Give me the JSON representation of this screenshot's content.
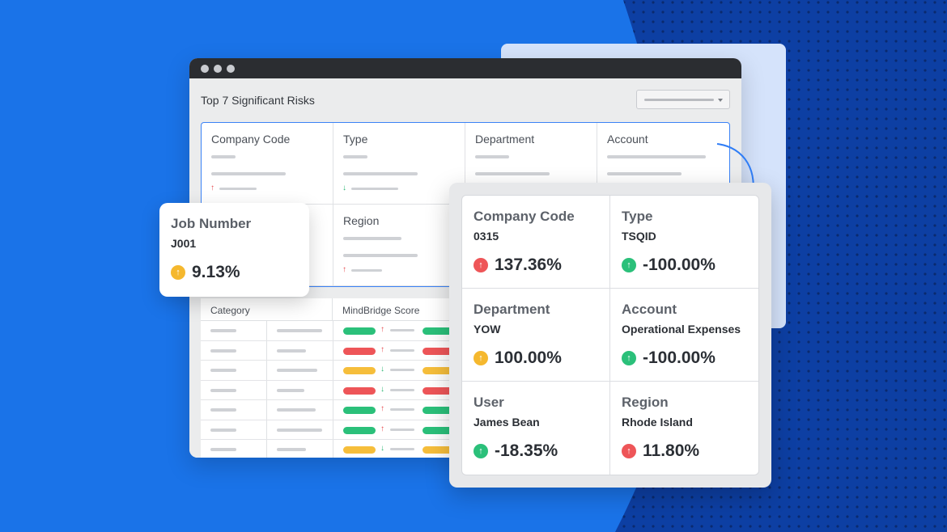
{
  "risk_panel": {
    "title": "Top 7 Significant Risks",
    "cards": [
      {
        "label": "Company Code"
      },
      {
        "label": "Type"
      },
      {
        "label": "Department"
      },
      {
        "label": "Account"
      },
      {
        "label": ""
      },
      {
        "label": "Region"
      }
    ]
  },
  "table": {
    "headers": [
      "Category",
      "MindBridge Score"
    ],
    "row_scores": [
      "green",
      "red",
      "yellow",
      "red",
      "green",
      "green",
      "yellow"
    ]
  },
  "job_card": {
    "label": "Job Number",
    "value": "J001",
    "percent": "9.13%",
    "trend_color": "#f5b82e"
  },
  "detail": {
    "cells": [
      {
        "label": "Company Code",
        "value": "0315",
        "percent": "137.36%",
        "trend": "up",
        "color": "red"
      },
      {
        "label": "Type",
        "value": "TSQID",
        "percent": "-100.00%",
        "trend": "up",
        "color": "green"
      },
      {
        "label": "Department",
        "value": "YOW",
        "percent": "100.00%",
        "trend": "up",
        "color": "yellow"
      },
      {
        "label": "Account",
        "value": "Operational Expenses",
        "percent": "-100.00%",
        "trend": "up",
        "color": "green"
      },
      {
        "label": "User",
        "value": "James Bean",
        "percent": "-18.35%",
        "trend": "up",
        "color": "green"
      },
      {
        "label": "Region",
        "value": "Rhode Island",
        "percent": "11.80%",
        "trend": "up",
        "color": "red"
      }
    ]
  },
  "colors": {
    "background": "#1a73e8",
    "dark_background": "#0d3fa3",
    "accent": "#3b82f6",
    "red": "#ee5558",
    "green": "#2bc07a",
    "yellow": "#f5b82e"
  }
}
